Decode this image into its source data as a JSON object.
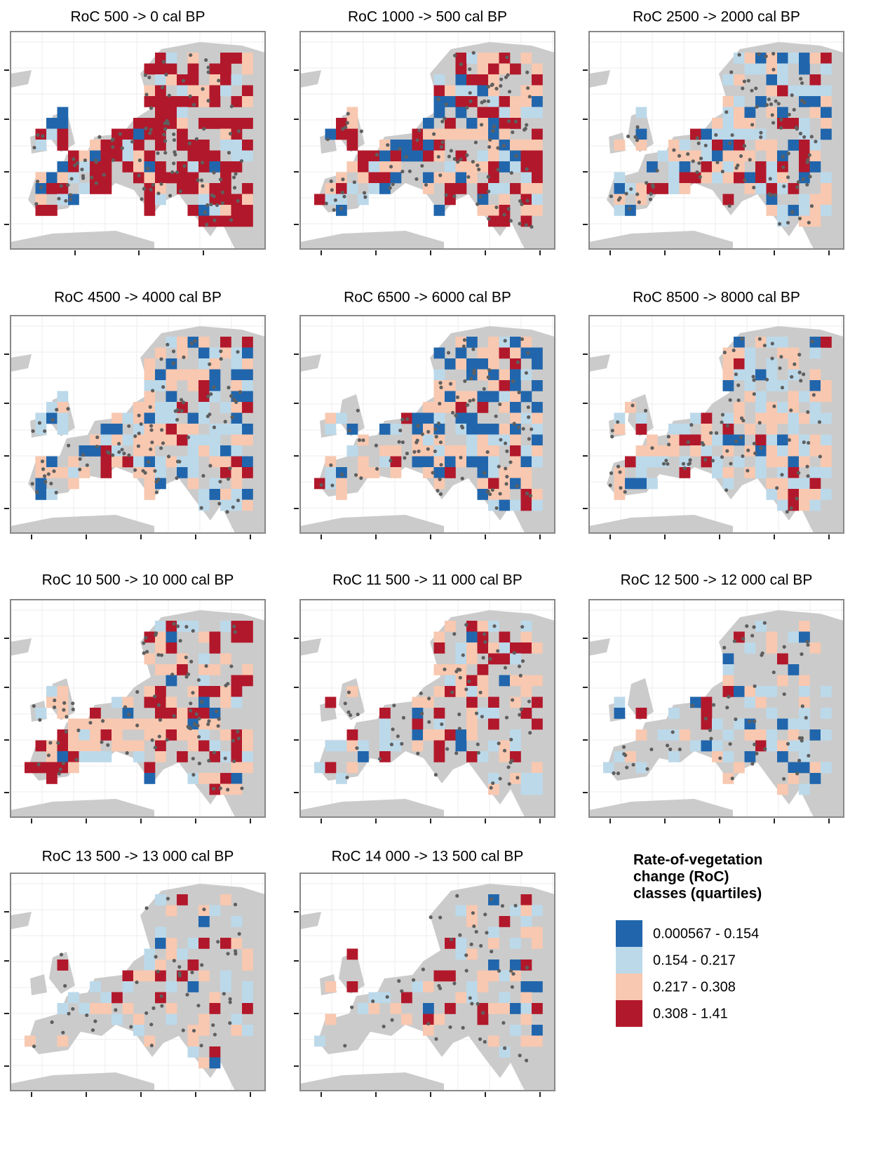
{
  "panels": [
    {
      "title": "RoC 500 -> 0 cal BP"
    },
    {
      "title": "RoC 1000 -> 500 cal BP"
    },
    {
      "title": "RoC 2500 -> 2000 cal BP"
    },
    {
      "title": "RoC 4500 -> 4000 cal BP"
    },
    {
      "title": "RoC 6500 -> 6000 cal BP"
    },
    {
      "title": "RoC 8500 -> 8000 cal BP"
    },
    {
      "title": "RoC 10 500 -> 10 000 cal BP"
    },
    {
      "title": "RoC 11 500 -> 11 000 cal BP"
    },
    {
      "title": "RoC 12 500 -> 12 000 cal BP"
    },
    {
      "title": "RoC 13 500 -> 13 000 cal BP"
    },
    {
      "title": "RoC 14 000 -> 13 500 cal BP"
    }
  ],
  "legend": {
    "title": [
      "Rate-of-vegetation",
      "change (RoC)",
      "classes (quartiles)"
    ],
    "items": [
      {
        "label": "0.000567 - 0.154",
        "color": "#2166ac"
      },
      {
        "label": "0.154 - 0.217",
        "color": "#bcd9ea"
      },
      {
        "label": "0.217 - 0.308",
        "color": "#f8c8b0"
      },
      {
        "label": "0.308 - 1.41",
        "color": "#b2182b"
      }
    ]
  }
}
